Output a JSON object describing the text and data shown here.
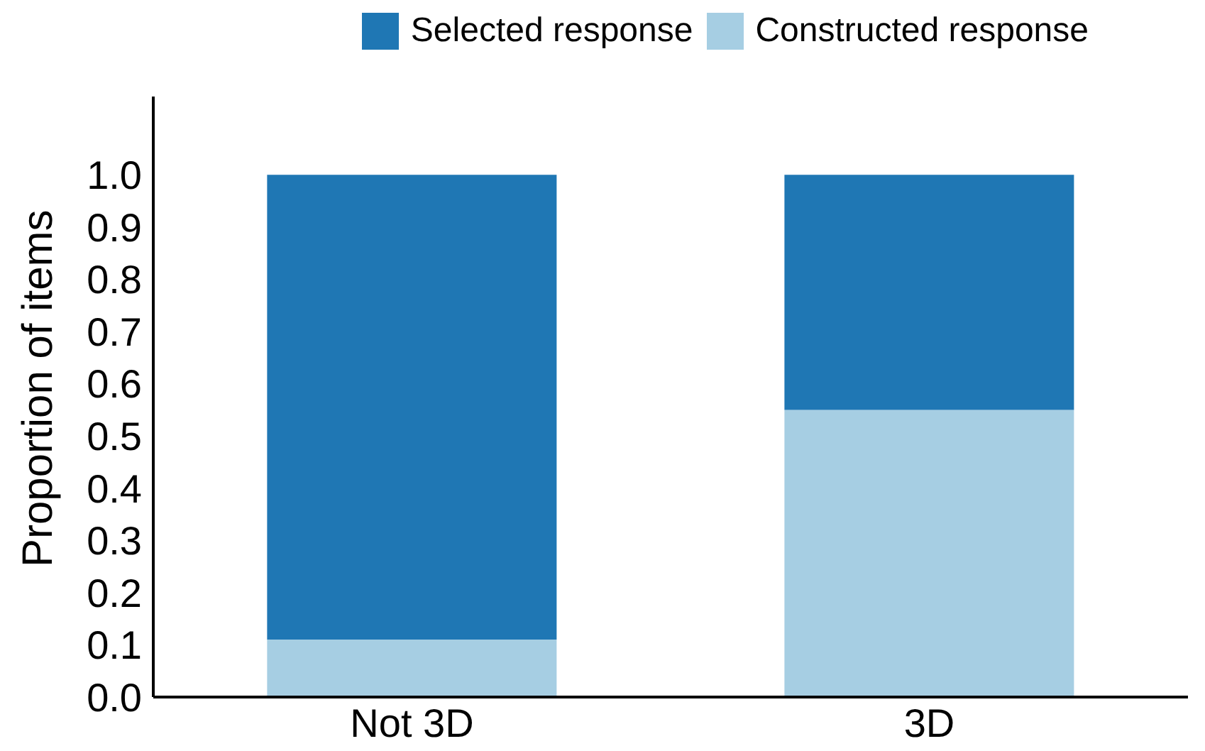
{
  "chart_data": {
    "type": "bar",
    "stacked": true,
    "ylabel": "Proportion of items",
    "categories": [
      "Not 3D",
      "3D"
    ],
    "series": [
      {
        "name": "Constructed response",
        "color": "#a6cee3",
        "values": [
          0.11,
          0.55
        ]
      },
      {
        "name": "Selected response",
        "color": "#1f77b4",
        "values": [
          0.89,
          0.45
        ]
      }
    ],
    "ylim": [
      0,
      1.15
    ],
    "yticks": [
      {
        "value": 0,
        "label": "0.0"
      },
      0.1,
      0.2,
      0.3,
      0.4,
      0.5,
      0.6,
      0.7,
      0.8,
      0.9,
      {
        "value": 1,
        "label": "1.0"
      }
    ],
    "grid": false,
    "legend": "top right"
  }
}
